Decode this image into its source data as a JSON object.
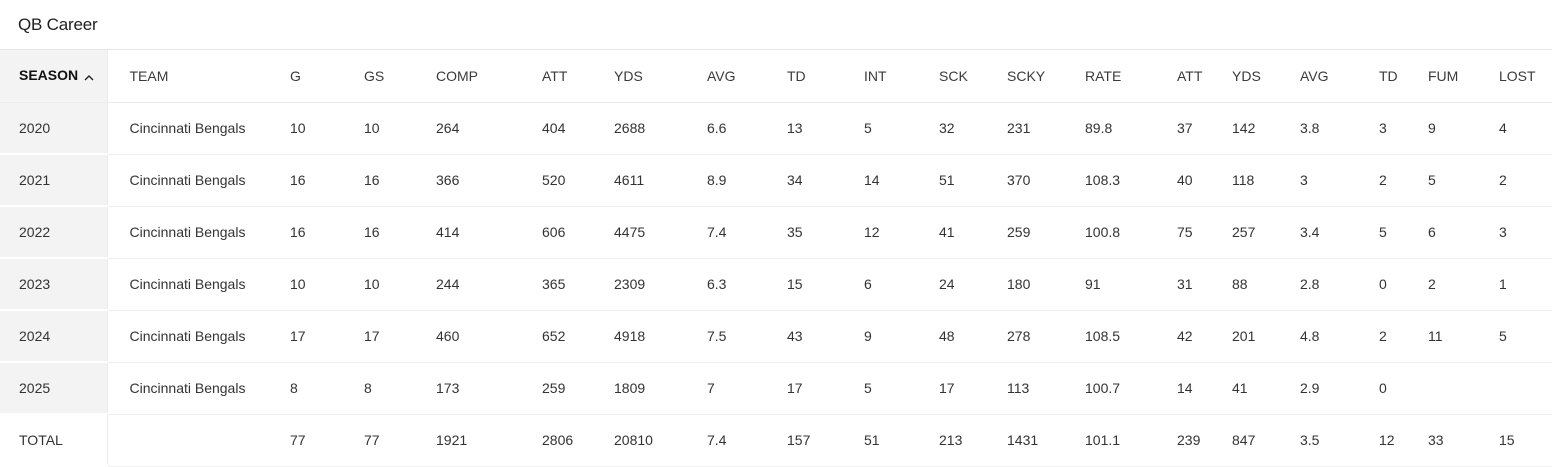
{
  "title": "QB Career",
  "columns": [
    "SEASON",
    "TEAM",
    "G",
    "GS",
    "COMP",
    "ATT",
    "YDS",
    "AVG",
    "TD",
    "INT",
    "SCK",
    "SCKY",
    "RATE",
    "ATT",
    "YDS",
    "AVG",
    "TD",
    "FUM",
    "LOST"
  ],
  "rows": [
    [
      "2020",
      "Cincinnati Bengals",
      "10",
      "10",
      "264",
      "404",
      "2688",
      "6.6",
      "13",
      "5",
      "32",
      "231",
      "89.8",
      "37",
      "142",
      "3.8",
      "3",
      "9",
      "4"
    ],
    [
      "2021",
      "Cincinnati Bengals",
      "16",
      "16",
      "366",
      "520",
      "4611",
      "8.9",
      "34",
      "14",
      "51",
      "370",
      "108.3",
      "40",
      "118",
      "3",
      "2",
      "5",
      "2"
    ],
    [
      "2022",
      "Cincinnati Bengals",
      "16",
      "16",
      "414",
      "606",
      "4475",
      "7.4",
      "35",
      "12",
      "41",
      "259",
      "100.8",
      "75",
      "257",
      "3.4",
      "5",
      "6",
      "3"
    ],
    [
      "2023",
      "Cincinnati Bengals",
      "10",
      "10",
      "244",
      "365",
      "2309",
      "6.3",
      "15",
      "6",
      "24",
      "180",
      "91",
      "31",
      "88",
      "2.8",
      "0",
      "2",
      "1"
    ],
    [
      "2024",
      "Cincinnati Bengals",
      "17",
      "17",
      "460",
      "652",
      "4918",
      "7.5",
      "43",
      "9",
      "48",
      "278",
      "108.5",
      "42",
      "201",
      "4.8",
      "2",
      "11",
      "5"
    ],
    [
      "2025",
      "Cincinnati Bengals",
      "8",
      "8",
      "173",
      "259",
      "1809",
      "7",
      "17",
      "5",
      "17",
      "113",
      "100.7",
      "14",
      "41",
      "2.9",
      "0",
      "",
      ""
    ]
  ],
  "total": [
    "TOTAL",
    "",
    "77",
    "77",
    "1921",
    "2806",
    "20810",
    "7.4",
    "157",
    "51",
    "213",
    "1431",
    "101.1",
    "239",
    "847",
    "3.5",
    "12",
    "33",
    "15"
  ],
  "sort": {
    "column": "SEASON",
    "direction": "ascending",
    "icon": "chevron-up-icon"
  }
}
